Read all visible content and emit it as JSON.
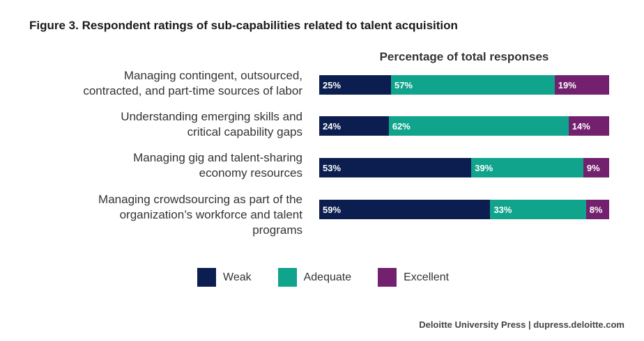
{
  "title": "Figure 3. Respondent ratings of sub-capabilities related to talent acquisition",
  "source": "Deloitte University Press  |  dupress.deloitte.com",
  "chart_data": {
    "type": "bar",
    "orientation": "horizontal",
    "stacked": true,
    "subtitle": "Percentage of total responses",
    "categories": [
      [
        "Managing contingent, outsourced,",
        "contracted, and part-time sources of labor"
      ],
      [
        "Understanding emerging skills and",
        "critical capability gaps"
      ],
      [
        "Managing gig and talent-sharing",
        "economy resources"
      ],
      [
        "Managing crowdsourcing as part of the",
        "organization’s workforce and talent",
        "programs"
      ]
    ],
    "series": [
      {
        "name": "Weak",
        "color": "#0b1e4f",
        "values": [
          25,
          24,
          53,
          59
        ]
      },
      {
        "name": "Adequate",
        "color": "#10a48c",
        "values": [
          57,
          62,
          39,
          33
        ]
      },
      {
        "name": "Excellent",
        "color": "#73216e",
        "values": [
          19,
          14,
          9,
          8
        ]
      }
    ],
    "value_suffix": "%",
    "legend_position": "bottom",
    "grid": false
  }
}
